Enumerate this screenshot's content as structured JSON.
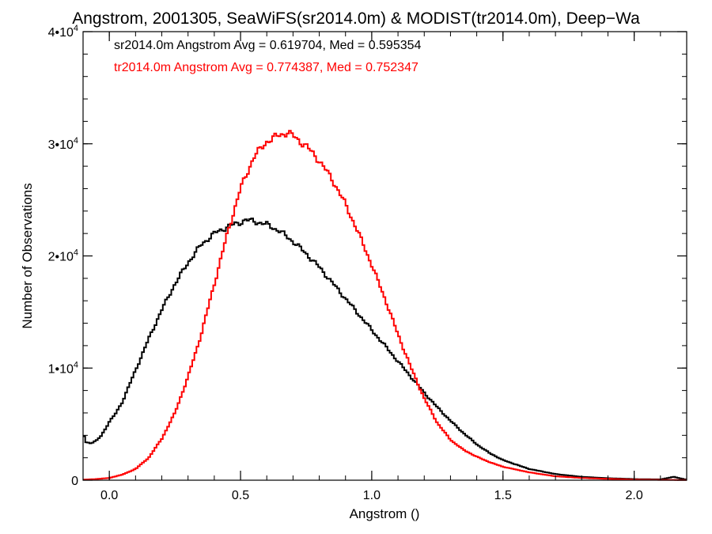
{
  "chart_data": {
    "type": "line",
    "title": "Angstrom, 2001305, SeaWiFS(sr2014.0m) & MODIST(tr2014.0m), Deep−Wa",
    "xlabel": "Angstrom ()",
    "ylabel": "Number of Observations",
    "xlim": [
      -0.1,
      2.2
    ],
    "ylim": [
      0,
      40000
    ],
    "x_ticks": [
      {
        "value": 0.0,
        "label": "0.0"
      },
      {
        "value": 0.5,
        "label": "0.5"
      },
      {
        "value": 1.0,
        "label": "1.0"
      },
      {
        "value": 1.5,
        "label": "1.5"
      },
      {
        "value": 2.0,
        "label": "2.0"
      }
    ],
    "y_ticks": [
      {
        "value": 0,
        "base": "0",
        "exp": ""
      },
      {
        "value": 10000,
        "base": "1•10",
        "exp": "4"
      },
      {
        "value": 20000,
        "base": "2•10",
        "exp": "4"
      },
      {
        "value": 30000,
        "base": "3•10",
        "exp": "4"
      },
      {
        "value": 40000,
        "base": "4•10",
        "exp": "4"
      }
    ],
    "grid": false,
    "style": "histogram-step",
    "annotations": [
      {
        "text": "sr2014.0m Angstrom Avg = 0.619704, Med = 0.595354",
        "color": "#000000"
      },
      {
        "text": "tr2014.0m Angstrom Avg = 0.774387, Med = 0.752347",
        "color": "#ff0000"
      }
    ],
    "series": [
      {
        "color": "#000000",
        "x": [
          -0.1,
          -0.09,
          -0.07,
          -0.05,
          -0.03,
          0.0,
          0.02,
          0.05,
          0.1,
          0.15,
          0.2,
          0.25,
          0.3,
          0.35,
          0.4,
          0.45,
          0.5,
          0.52,
          0.55,
          0.6,
          0.65,
          0.7,
          0.75,
          0.8,
          0.85,
          0.9,
          0.95,
          1.0,
          1.05,
          1.1,
          1.15,
          1.2,
          1.25,
          1.3,
          1.35,
          1.4,
          1.45,
          1.5,
          1.6,
          1.7,
          1.8,
          1.9,
          2.0,
          2.1,
          2.15,
          2.2
        ],
        "y": [
          4300,
          3400,
          3300,
          3500,
          4000,
          5200,
          5800,
          7000,
          9800,
          12600,
          15200,
          17500,
          19400,
          21000,
          22000,
          22600,
          23000,
          23200,
          23100,
          22800,
          22200,
          21300,
          20200,
          19000,
          17600,
          16200,
          14800,
          13400,
          12000,
          10600,
          9200,
          7800,
          6500,
          5300,
          4200,
          3200,
          2400,
          1800,
          1000,
          550,
          300,
          180,
          100,
          70,
          300,
          40
        ]
      },
      {
        "color": "#ff0000",
        "x": [
          -0.1,
          -0.05,
          0.0,
          0.05,
          0.1,
          0.15,
          0.2,
          0.25,
          0.3,
          0.35,
          0.4,
          0.45,
          0.5,
          0.55,
          0.6,
          0.65,
          0.68,
          0.7,
          0.75,
          0.8,
          0.85,
          0.9,
          0.95,
          1.0,
          1.05,
          1.1,
          1.15,
          1.2,
          1.25,
          1.3,
          1.35,
          1.4,
          1.45,
          1.5,
          1.6,
          1.7,
          1.8,
          1.9,
          2.0,
          2.1,
          2.2
        ],
        "y": [
          50,
          100,
          200,
          500,
          1000,
          2000,
          3700,
          6000,
          9200,
          13000,
          17500,
          22000,
          26000,
          28800,
          30200,
          30800,
          31000,
          30700,
          29800,
          28500,
          26800,
          24600,
          22000,
          19200,
          16200,
          13000,
          10000,
          7300,
          5100,
          3600,
          2700,
          2100,
          1600,
          1200,
          700,
          350,
          200,
          120,
          50,
          30,
          20
        ]
      }
    ]
  }
}
